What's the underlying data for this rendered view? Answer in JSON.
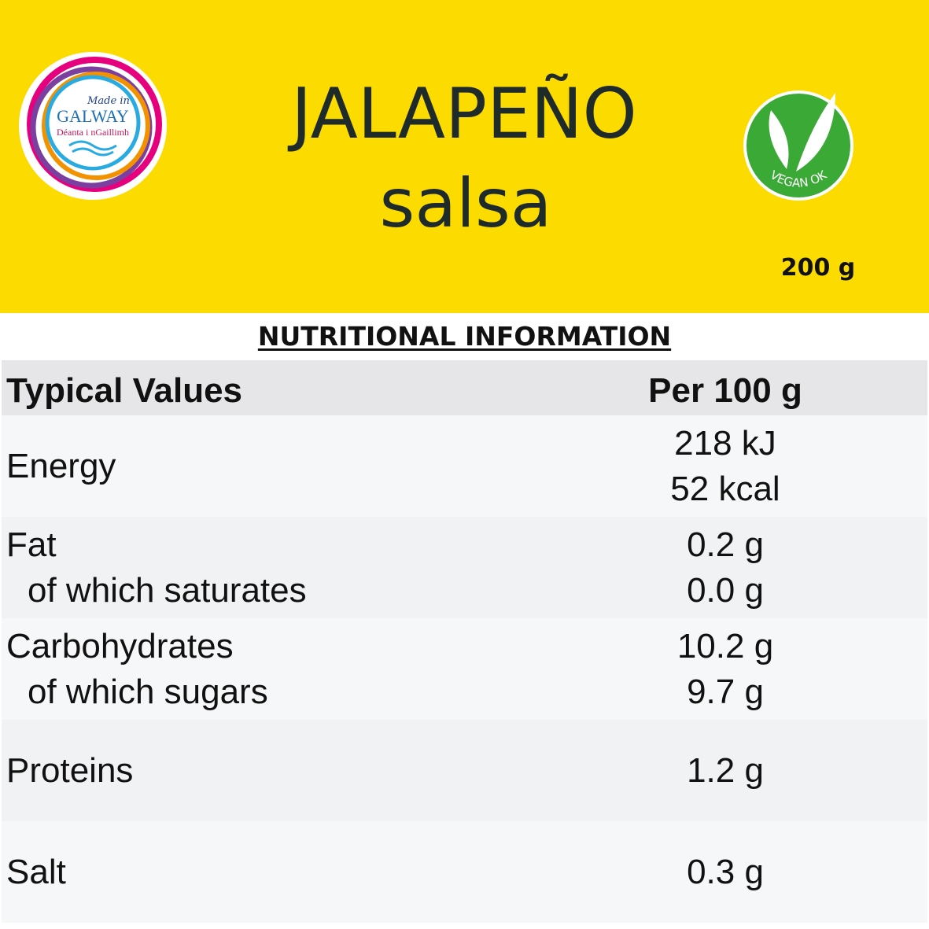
{
  "header": {
    "title": "JALAPEÑO",
    "subtitle": "salsa",
    "weight": "200 g",
    "logo": {
      "top": "Made in",
      "name": "GALWAY",
      "irish": "Déanta i nGaillimh"
    },
    "badge": "VEGAN OK"
  },
  "section_title": "NUTRITIONAL INFORMATION",
  "table": {
    "columns": [
      "Typical Values",
      "Per 100 g"
    ],
    "rows": [
      {
        "labels": [
          "Energy"
        ],
        "values": [
          "218 kJ",
          "52 kcal"
        ]
      },
      {
        "labels": [
          "Fat",
          "of which saturates"
        ],
        "values": [
          "0.2 g",
          "0.0 g"
        ]
      },
      {
        "labels": [
          "Carbohydrates",
          "of which sugars"
        ],
        "values": [
          "10.2 g",
          "9.7 g"
        ]
      },
      {
        "labels": [
          "Proteins"
        ],
        "values": [
          "1.2 g"
        ]
      },
      {
        "labels": [
          "Salt"
        ],
        "values": [
          "0.3 g"
        ]
      }
    ]
  }
}
